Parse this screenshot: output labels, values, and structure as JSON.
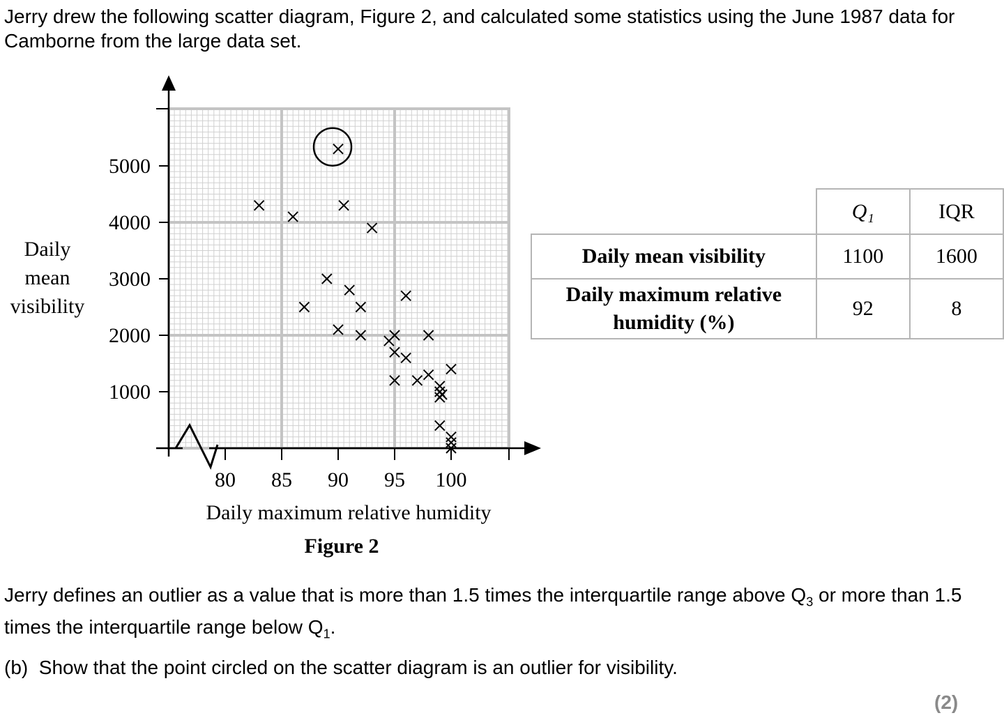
{
  "intro": "Jerry drew the following scatter diagram, Figure 2, and calculated some statistics using the June 1987 data for Camborne from the large data set.",
  "chart_data": {
    "type": "scatter",
    "title": "Figure 2",
    "xlabel": "Daily maximum relative humidity",
    "ylabel": "Daily mean visibility",
    "x_ticks": [
      "80",
      "85",
      "90",
      "95",
      "100"
    ],
    "y_ticks": [
      "1000",
      "2000",
      "3000",
      "4000",
      "5000"
    ],
    "xlim": [
      75,
      100
    ],
    "ylim": [
      0,
      6000
    ],
    "grid": true,
    "axis_break": "x",
    "points": [
      {
        "x": 90,
        "y": 5300,
        "circled": true
      },
      {
        "x": 83,
        "y": 4300
      },
      {
        "x": 86,
        "y": 4100
      },
      {
        "x": 90.5,
        "y": 4300
      },
      {
        "x": 93,
        "y": 3900
      },
      {
        "x": 89,
        "y": 3000
      },
      {
        "x": 87,
        "y": 2500
      },
      {
        "x": 91,
        "y": 2800
      },
      {
        "x": 92,
        "y": 2500
      },
      {
        "x": 96,
        "y": 2700
      },
      {
        "x": 90,
        "y": 2100
      },
      {
        "x": 92,
        "y": 2000
      },
      {
        "x": 95,
        "y": 2000
      },
      {
        "x": 98,
        "y": 2000
      },
      {
        "x": 94.5,
        "y": 1900
      },
      {
        "x": 95,
        "y": 1700
      },
      {
        "x": 96,
        "y": 1600
      },
      {
        "x": 95,
        "y": 1200
      },
      {
        "x": 97,
        "y": 1200
      },
      {
        "x": 98,
        "y": 1300
      },
      {
        "x": 100,
        "y": 1400
      },
      {
        "x": 99,
        "y": 1100
      },
      {
        "x": 99,
        "y": 1000
      },
      {
        "x": 99.2,
        "y": 950
      },
      {
        "x": 99,
        "y": 900
      },
      {
        "x": 99,
        "y": 400
      },
      {
        "x": 100,
        "y": 200
      },
      {
        "x": 100,
        "y": 100
      },
      {
        "x": 100,
        "y": 0
      }
    ]
  },
  "stats_table": {
    "col_headers": [
      "Q₁",
      "IQR"
    ],
    "rows": [
      {
        "label": "Daily mean visibility",
        "values": [
          "1100",
          "1600"
        ]
      },
      {
        "label": "Daily maximum relative humidity (%)",
        "values": [
          "92",
          "8"
        ]
      }
    ]
  },
  "question": {
    "outlier_definition": "Jerry defines an outlier as a value that is more than 1.5 times the interquartile range above Q₃ or more than 1.5 times the interquartile range below Q₁.",
    "part_label": "(b)",
    "part_text": "Show that the point circled on the scatter diagram is an outlier for visibility.",
    "marks": "(2)"
  }
}
